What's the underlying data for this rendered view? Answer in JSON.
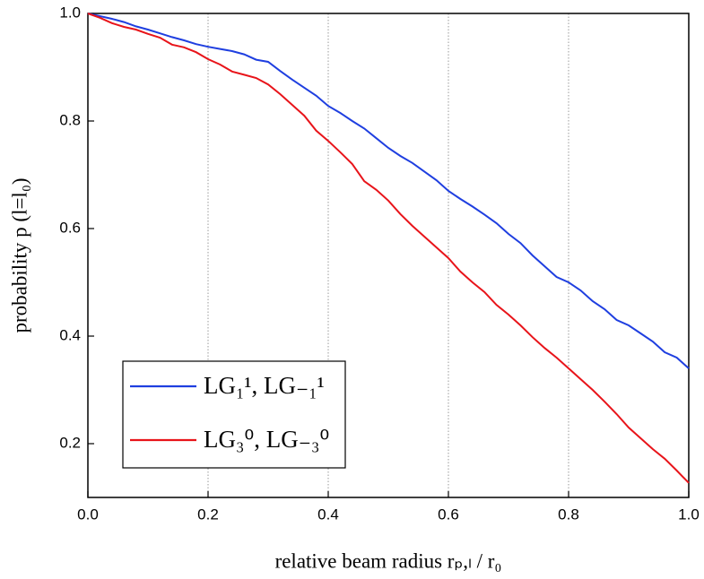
{
  "chart_data": {
    "type": "line",
    "x_label": "relative beam radius  rₚ,ₗ / r₀",
    "y_label": "probability p (l=l₀)",
    "x": [
      0,
      0.02,
      0.04,
      0.06,
      0.08,
      0.1,
      0.12,
      0.14,
      0.16,
      0.18,
      0.2,
      0.22,
      0.24,
      0.26,
      0.28,
      0.3,
      0.32,
      0.34,
      0.36,
      0.38,
      0.4,
      0.42,
      0.44,
      0.46,
      0.48,
      0.5,
      0.52,
      0.54,
      0.56,
      0.58,
      0.6,
      0.62,
      0.64,
      0.66,
      0.68,
      0.7,
      0.72,
      0.74,
      0.76,
      0.78,
      0.8,
      0.82,
      0.84,
      0.86,
      0.88,
      0.9,
      0.92,
      0.94,
      0.96,
      0.98,
      1
    ],
    "series": [
      {
        "name": "LG₁¹, LG₋₁¹",
        "color": "#1f3fe0",
        "values": [
          1.0,
          0.995,
          0.99,
          0.984,
          0.976,
          0.97,
          0.963,
          0.956,
          0.95,
          0.943,
          0.938,
          0.934,
          0.93,
          0.924,
          0.914,
          0.91,
          0.893,
          0.877,
          0.862,
          0.847,
          0.828,
          0.815,
          0.8,
          0.786,
          0.768,
          0.75,
          0.735,
          0.722,
          0.706,
          0.69,
          0.67,
          0.655,
          0.641,
          0.626,
          0.61,
          0.59,
          0.573,
          0.55,
          0.53,
          0.51,
          0.5,
          0.485,
          0.465,
          0.45,
          0.43,
          0.42,
          0.405,
          0.39,
          0.37,
          0.36,
          0.34
        ]
      },
      {
        "name": "LG₃⁰, LG₋₃⁰",
        "color": "#e8141a",
        "values": [
          1.0,
          0.992,
          0.982,
          0.975,
          0.97,
          0.962,
          0.955,
          0.942,
          0.937,
          0.928,
          0.915,
          0.905,
          0.892,
          0.886,
          0.88,
          0.868,
          0.85,
          0.83,
          0.81,
          0.782,
          0.763,
          0.742,
          0.72,
          0.688,
          0.672,
          0.652,
          0.627,
          0.605,
          0.585,
          0.565,
          0.545,
          0.52,
          0.5,
          0.482,
          0.458,
          0.44,
          0.42,
          0.398,
          0.378,
          0.36,
          0.34,
          0.32,
          0.3,
          0.278,
          0.255,
          0.23,
          0.21,
          0.19,
          0.172,
          0.15,
          0.127
        ]
      }
    ],
    "xlim": [
      0,
      1
    ],
    "ylim": [
      0.1,
      1.0
    ],
    "xticks": [
      {
        "value": 0,
        "label": "0.0"
      },
      0.2,
      0.4,
      0.6,
      0.8,
      {
        "value": 1,
        "label": "1.0"
      }
    ],
    "yticks": [
      0.2,
      0.4,
      0.6,
      0.8,
      {
        "value": 1,
        "label": "1.0"
      }
    ],
    "grid": true,
    "legend": "lower left"
  }
}
